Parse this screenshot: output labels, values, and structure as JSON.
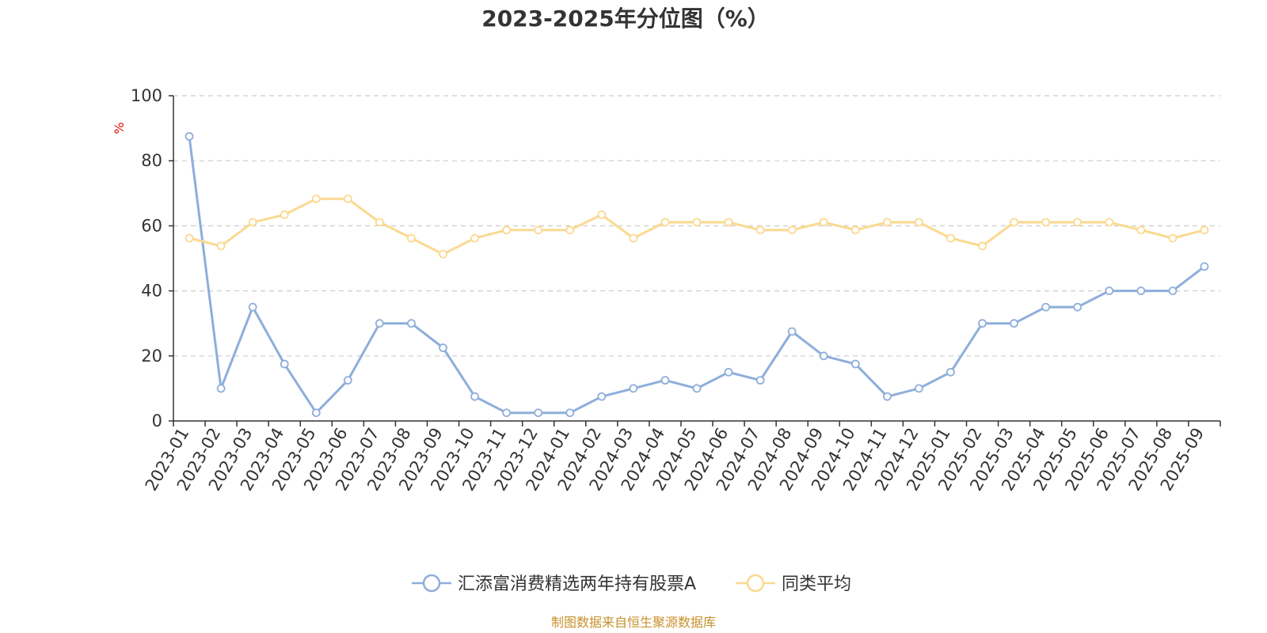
{
  "chart_data": {
    "type": "line",
    "title": "2023-2025年分位图（%）",
    "ylabel": "%",
    "ylim": [
      0,
      100
    ],
    "yticks": [
      0,
      20,
      40,
      60,
      80,
      100
    ],
    "grid": true,
    "legend_position": "bottom",
    "categories": [
      "2023-01",
      "2023-02",
      "2023-03",
      "2023-04",
      "2023-05",
      "2023-06",
      "2023-07",
      "2023-08",
      "2023-09",
      "2023-10",
      "2023-11",
      "2023-12",
      "2024-01",
      "2024-02",
      "2024-03",
      "2024-04",
      "2024-05",
      "2024-06",
      "2024-07",
      "2024-08",
      "2024-09",
      "2024-10",
      "2024-11",
      "2024-12",
      "2025-01",
      "2025-02",
      "2025-03",
      "2025-04",
      "2025-05",
      "2025-06",
      "2025-07",
      "2025-08",
      "2025-09"
    ],
    "series": [
      {
        "name": "汇添富消费精选两年持有股票A",
        "color": "#8eaedb",
        "values": [
          87.5,
          10,
          35,
          17.5,
          2.5,
          12.5,
          30,
          30,
          22.5,
          7.5,
          2.5,
          2.5,
          2.5,
          7.5,
          10,
          12.5,
          10,
          15,
          12.5,
          27.5,
          20,
          17.5,
          7.5,
          10,
          15,
          30,
          30,
          35,
          35,
          40,
          40,
          40,
          47.5
        ]
      },
      {
        "name": "同类平均",
        "color": "#fbd990",
        "values": [
          56.2,
          53.8,
          61.1,
          63.4,
          68.3,
          68.3,
          61.1,
          56.2,
          51.3,
          56.2,
          58.7,
          58.7,
          58.7,
          63.4,
          56.2,
          61.1,
          61.1,
          61.1,
          58.7,
          58.7,
          61.1,
          58.7,
          61.1,
          61.1,
          56.2,
          53.8,
          61.1,
          61.1,
          61.1,
          61.1,
          58.7,
          56.2,
          58.7
        ]
      }
    ]
  },
  "source_text": "制图数据来自恒生聚源数据库",
  "colors": {
    "axis": "#333333",
    "grid": "#cccccc",
    "ylabel": "#e01010",
    "source": "#c8902c"
  }
}
